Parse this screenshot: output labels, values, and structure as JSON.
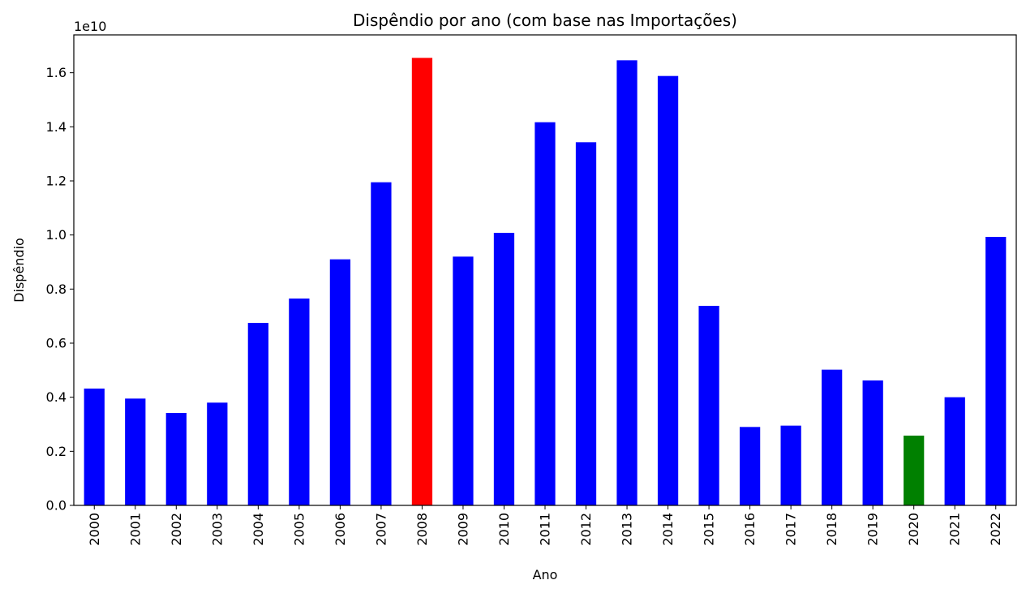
{
  "chart_data": {
    "type": "bar",
    "title": "Dispêndio por ano (com base nas Importações)",
    "xlabel": "Ano",
    "ylabel": "Dispêndio",
    "offset_text": "1e10",
    "ylim": [
      0,
      1.74
    ],
    "yticks": [
      0.0,
      0.2,
      0.4,
      0.6,
      0.8,
      1.0,
      1.2,
      1.4,
      1.6
    ],
    "ytick_labels": [
      "0.0",
      "0.2",
      "0.4",
      "0.6",
      "0.8",
      "1.0",
      "1.2",
      "1.4",
      "1.6"
    ],
    "grid": false,
    "categories": [
      "2000",
      "2001",
      "2002",
      "2003",
      "2004",
      "2005",
      "2006",
      "2007",
      "2008",
      "2009",
      "2010",
      "2011",
      "2012",
      "2013",
      "2014",
      "2015",
      "2016",
      "2017",
      "2018",
      "2019",
      "2020",
      "2021",
      "2022"
    ],
    "values": [
      0.432,
      0.395,
      0.342,
      0.38,
      0.675,
      0.765,
      0.91,
      1.195,
      1.655,
      0.92,
      1.008,
      1.417,
      1.343,
      1.646,
      1.588,
      0.738,
      0.29,
      0.295,
      0.502,
      0.462,
      0.258,
      0.4,
      0.993
    ],
    "colors": [
      "#0000ff",
      "#0000ff",
      "#0000ff",
      "#0000ff",
      "#0000ff",
      "#0000ff",
      "#0000ff",
      "#0000ff",
      "#ff0000",
      "#0000ff",
      "#0000ff",
      "#0000ff",
      "#0000ff",
      "#0000ff",
      "#0000ff",
      "#0000ff",
      "#0000ff",
      "#0000ff",
      "#0000ff",
      "#0000ff",
      "#008000",
      "#0000ff",
      "#0000ff"
    ]
  }
}
